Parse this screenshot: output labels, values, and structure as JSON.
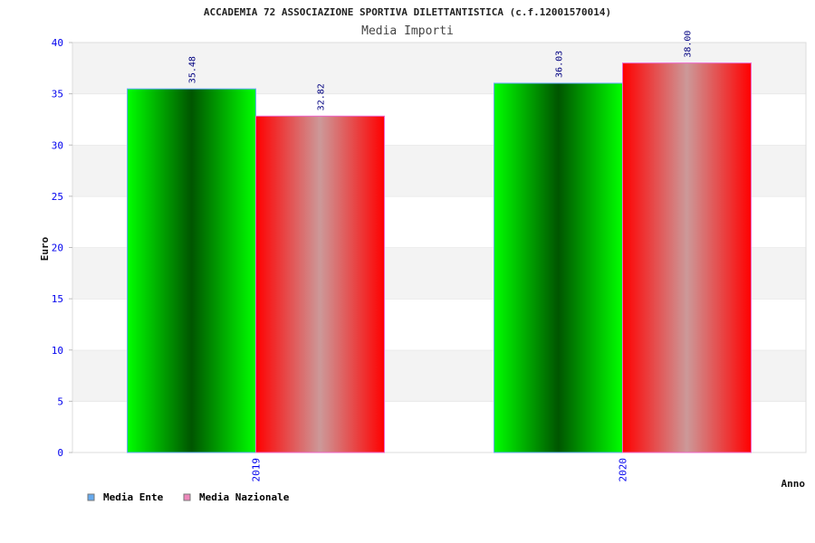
{
  "chart_data": {
    "type": "bar",
    "title": "ACCADEMIA 72 ASSOCIAZIONE SPORTIVA DILETTANTISTICA (c.f.12001570014)",
    "subtitle": "Media Importi",
    "xlabel": "Anno",
    "ylabel": "Euro",
    "ylim": [
      0,
      40
    ],
    "yticks": [
      0,
      5,
      10,
      15,
      20,
      25,
      30,
      35,
      40
    ],
    "categories": [
      "2019",
      "2020"
    ],
    "series": [
      {
        "name": "Media Ente",
        "values": [
          35.48,
          36.03
        ],
        "labels": [
          "35.48",
          "36.03"
        ],
        "legend_color": "#66aaee",
        "border": "#66aaff",
        "gradient": [
          "#00ff00",
          "#005500"
        ]
      },
      {
        "name": "Media Nazionale",
        "values": [
          32.82,
          38.0
        ],
        "labels": [
          "32.82",
          "38.00"
        ],
        "legend_color": "#ee88bb",
        "border": "#ee66cc",
        "gradient": [
          "#ff0000",
          "#cc9999"
        ]
      }
    ],
    "grid": true,
    "legend_placement": "bottom-left"
  }
}
